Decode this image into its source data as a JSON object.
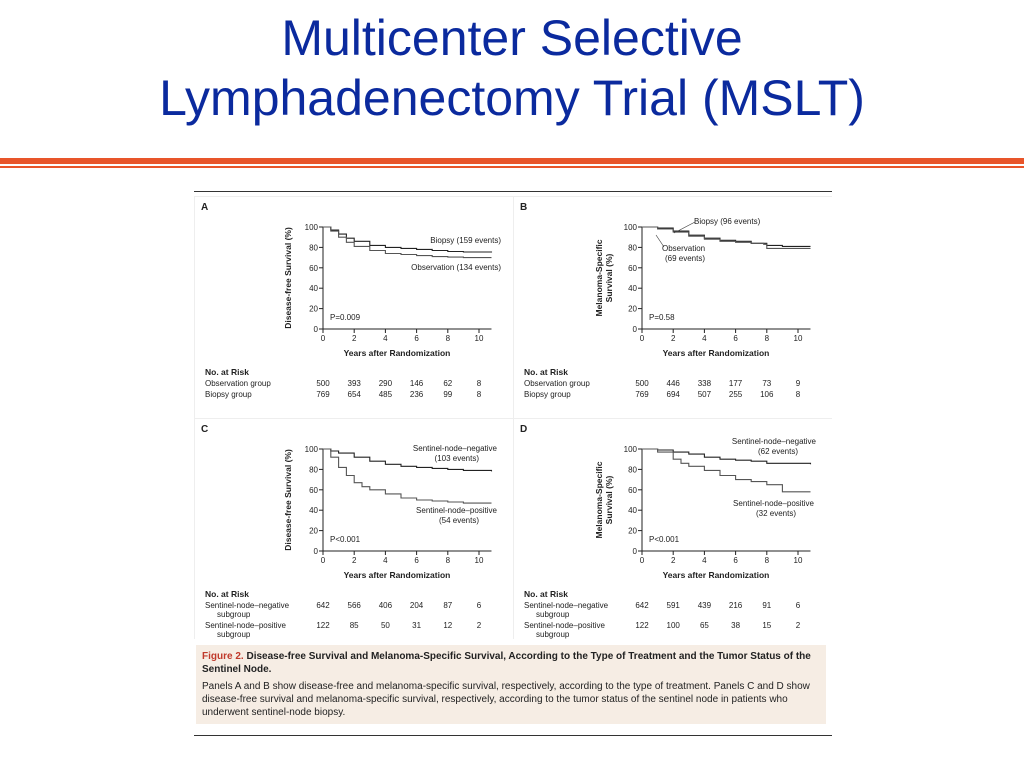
{
  "slide": {
    "title_line1": "Multicenter Selective",
    "title_line2": "Lymphadenectomy Trial (MSLT)"
  },
  "caption": {
    "figure_label": "Figure 2.",
    "title": "Disease-free Survival and Melanoma-Specific Survival, According to the Type of Treatment and the Tumor Status of the Sentinel Node.",
    "text": "Panels A and B show disease-free and melanoma-specific survival, respectively, according to the type of treatment. Panels C and D show disease-free survival and melanoma-specific survival, respectively, according to the tumor status of the sentinel node in patients who underwent sentinel-node biopsy."
  },
  "chart_data": [
    {
      "type": "line",
      "panel": "A",
      "ylabel": "Disease-free Survival (%)",
      "xlabel": "Years after Randomization",
      "xlim": [
        0,
        10
      ],
      "ylim": [
        0,
        100
      ],
      "xticks": [
        0,
        2,
        4,
        6,
        8,
        10
      ],
      "yticks": [
        0,
        20,
        40,
        60,
        80,
        100
      ],
      "pvalue": "P=0.009",
      "series": [
        {
          "name": "Biopsy (159 events)",
          "x": [
            0,
            0.5,
            1,
            1.5,
            2,
            3,
            4,
            5,
            6,
            7,
            8,
            9,
            10.8
          ],
          "y": [
            100,
            97,
            93,
            89,
            86,
            82,
            80,
            79,
            78,
            77,
            76,
            75.5,
            75
          ]
        },
        {
          "name": "Observation (134 events)",
          "x": [
            0,
            0.5,
            1,
            1.5,
            2,
            3,
            4,
            5,
            6,
            7,
            8,
            9,
            10.8
          ],
          "y": [
            100,
            96,
            90,
            85,
            81,
            77,
            74,
            73,
            72,
            71,
            70.5,
            70,
            70
          ]
        }
      ],
      "risk_table": {
        "title": "No. at Risk",
        "x": [
          0,
          2,
          4,
          6,
          8,
          10
        ],
        "rows": [
          {
            "label": "Observation group",
            "values": [
              "500",
              "393",
              "290",
              "146",
              "62",
              "8"
            ]
          },
          {
            "label": "Biopsy group",
            "values": [
              "769",
              "654",
              "485",
              "236",
              "99",
              "8"
            ]
          }
        ]
      }
    },
    {
      "type": "line",
      "panel": "B",
      "ylabel": "Melanoma-Specific Survival (%)",
      "xlabel": "Years after Randomization",
      "xlim": [
        0,
        10
      ],
      "ylim": [
        0,
        100
      ],
      "xticks": [
        0,
        2,
        4,
        6,
        8,
        10
      ],
      "yticks": [
        0,
        20,
        40,
        60,
        80,
        100
      ],
      "pvalue": "P=0.58",
      "series": [
        {
          "name": "Biopsy (96 events)",
          "x": [
            0,
            1,
            2,
            3,
            4,
            5,
            6,
            7,
            8,
            9,
            10.8
          ],
          "y": [
            100,
            99,
            96,
            92,
            89,
            87,
            86,
            84,
            82,
            81,
            81
          ]
        },
        {
          "name": "Observation (69 events)",
          "x": [
            0,
            1,
            2,
            3,
            4,
            5,
            6,
            7,
            7.8,
            8,
            10.8
          ],
          "y": [
            100,
            98,
            95,
            91,
            88,
            86,
            85,
            84,
            83,
            79,
            79
          ]
        }
      ],
      "risk_table": {
        "title": "No. at Risk",
        "x": [
          0,
          2,
          4,
          6,
          8,
          10
        ],
        "rows": [
          {
            "label": "Observation group",
            "values": [
              "500",
              "446",
              "338",
              "177",
              "73",
              "9"
            ]
          },
          {
            "label": "Biopsy group",
            "values": [
              "769",
              "694",
              "507",
              "255",
              "106",
              "8"
            ]
          }
        ]
      }
    },
    {
      "type": "line",
      "panel": "C",
      "ylabel": "Disease-free Survival (%)",
      "xlabel": "Years after Randomization",
      "xlim": [
        0,
        10
      ],
      "ylim": [
        0,
        100
      ],
      "xticks": [
        0,
        2,
        4,
        6,
        8,
        10
      ],
      "yticks": [
        0,
        20,
        40,
        60,
        80,
        100
      ],
      "pvalue": "P<0.001",
      "series": [
        {
          "name": "Sentinel-node–negative (103 events)",
          "x": [
            0,
            0.5,
            1,
            2,
            3,
            4,
            5,
            6,
            7,
            8,
            9,
            10.8
          ],
          "y": [
            100,
            98,
            96,
            92,
            88,
            85,
            83,
            82,
            81,
            80,
            79,
            78
          ]
        },
        {
          "name": "Sentinel-node–positive (54 events)",
          "x": [
            0,
            0.5,
            1,
            1.5,
            2,
            2.5,
            3,
            4,
            5,
            6,
            7,
            8,
            9,
            10.8
          ],
          "y": [
            100,
            92,
            82,
            74,
            67,
            63,
            60,
            56,
            52,
            50,
            49,
            48,
            47,
            47
          ]
        }
      ],
      "risk_table": {
        "title": "No. at Risk",
        "x": [
          0,
          2,
          4,
          6,
          8,
          10
        ],
        "rows": [
          {
            "label_lines": [
              "Sentinel-node–negative",
              "subgroup"
            ],
            "values": [
              "642",
              "566",
              "406",
              "204",
              "87",
              "6"
            ]
          },
          {
            "label_lines": [
              "Sentinel-node–positive",
              "subgroup"
            ],
            "values": [
              "122",
              "85",
              "50",
              "31",
              "12",
              "2"
            ]
          }
        ]
      }
    },
    {
      "type": "line",
      "panel": "D",
      "ylabel": "Melanoma-Specific Survival (%)",
      "xlabel": "Years after Randomization",
      "xlim": [
        0,
        10
      ],
      "ylim": [
        0,
        100
      ],
      "xticks": [
        0,
        2,
        4,
        6,
        8,
        10
      ],
      "yticks": [
        0,
        20,
        40,
        60,
        80,
        100
      ],
      "pvalue": "P<0.001",
      "series": [
        {
          "name": "Sentinel-node–negative (62 events)",
          "x": [
            0,
            1,
            2,
            3,
            4,
            5,
            6,
            7,
            8,
            10.8
          ],
          "y": [
            100,
            99,
            97,
            95,
            92,
            90,
            89,
            88,
            86,
            85
          ]
        },
        {
          "name": "Sentinel-node–positive (32 events)",
          "x": [
            0,
            1,
            2,
            2.5,
            3,
            4,
            5,
            6,
            7,
            8,
            9,
            10.8
          ],
          "y": [
            100,
            97,
            90,
            86,
            83,
            79,
            74,
            70,
            68,
            65,
            58,
            58
          ]
        }
      ],
      "risk_table": {
        "title": "No. at Risk",
        "x": [
          0,
          2,
          4,
          6,
          8,
          10
        ],
        "rows": [
          {
            "label_lines": [
              "Sentinel-node–negative",
              "subgroup"
            ],
            "values": [
              "642",
              "591",
              "439",
              "216",
              "91",
              "6"
            ]
          },
          {
            "label_lines": [
              "Sentinel-node–positive",
              "subgroup"
            ],
            "values": [
              "122",
              "100",
              "65",
              "38",
              "15",
              "2"
            ]
          }
        ]
      }
    }
  ]
}
